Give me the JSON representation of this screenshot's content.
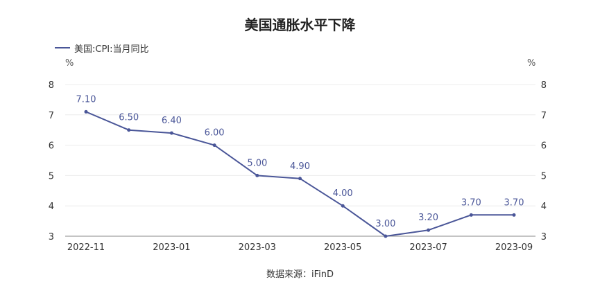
{
  "chart_data": {
    "type": "line",
    "title": "美国通胀水平下降",
    "legend": "美国:CPI:当月同比",
    "y_unit_left": "%",
    "y_unit_right": "%",
    "source": "数据来源：iFinD",
    "ylim": [
      3,
      8
    ],
    "yticks": [
      "8",
      "7",
      "6",
      "5",
      "4",
      "3"
    ],
    "xticks": [
      "2022-11",
      "2023-01",
      "2023-03",
      "2023-05",
      "2023-07",
      "2023-09"
    ],
    "grid": true,
    "legend_position": "top-left",
    "series": [
      {
        "name": "美国:CPI:当月同比",
        "color": "#4a5698",
        "x": [
          "2022-11",
          "2022-12",
          "2023-01",
          "2023-02",
          "2023-03",
          "2023-04",
          "2023-05",
          "2023-06",
          "2023-07",
          "2023-08",
          "2023-09"
        ],
        "values": [
          7.1,
          6.5,
          6.4,
          6.0,
          5.0,
          4.9,
          4.0,
          3.0,
          3.2,
          3.7,
          3.7
        ],
        "labels": [
          "7.10",
          "6.50",
          "6.40",
          "6.00",
          "5.00",
          "4.90",
          "4.00",
          "3.00",
          "3.20",
          "3.70",
          "3.70"
        ]
      }
    ]
  }
}
